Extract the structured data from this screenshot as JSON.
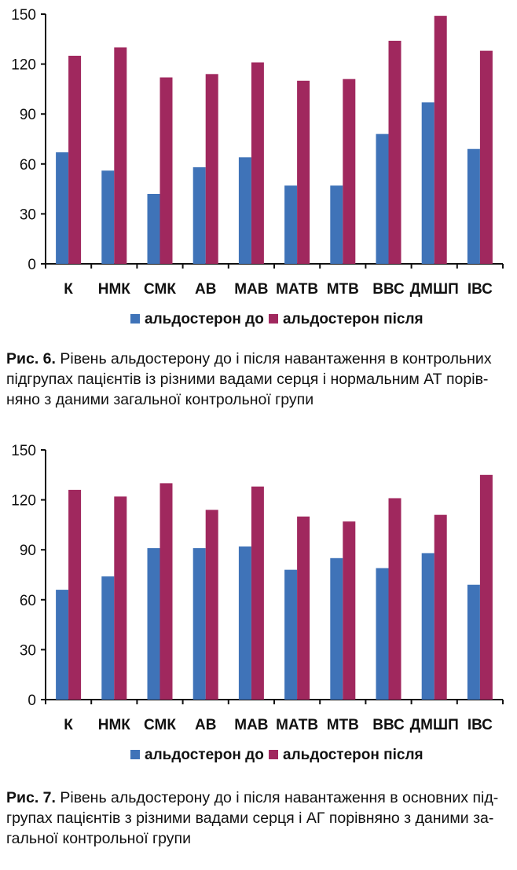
{
  "colors": {
    "before": "#3F73B8",
    "after": "#A0285E"
  },
  "chart_data": [
    {
      "type": "bar",
      "categories": [
        "К",
        "НМК",
        "СМК",
        "АВ",
        "МАВ",
        "МАТВ",
        "МТВ",
        "ВВС",
        "ДМШП",
        "ІВС"
      ],
      "series": [
        {
          "name": "альдостерон до",
          "values": [
            67,
            56,
            42,
            58,
            64,
            47,
            47,
            78,
            97,
            69
          ]
        },
        {
          "name": "альдостерон після",
          "values": [
            125,
            130,
            112,
            114,
            121,
            110,
            111,
            134,
            149,
            128
          ]
        }
      ],
      "yticks": [
        "0",
        "30",
        "60",
        "90",
        "120",
        "150"
      ],
      "ylim": [
        0,
        150
      ],
      "legend": "bottom",
      "grid": false
    },
    {
      "type": "bar",
      "categories": [
        "К",
        "НМК",
        "СМК",
        "АВ",
        "МАВ",
        "МАТВ",
        "МТВ",
        "ВВС",
        "ДМШП",
        "ІВС"
      ],
      "series": [
        {
          "name": "альдостерон до",
          "values": [
            66,
            74,
            91,
            91,
            92,
            78,
            85,
            79,
            88,
            69
          ]
        },
        {
          "name": "альдостерон після",
          "values": [
            126,
            122,
            130,
            114,
            128,
            110,
            107,
            121,
            111,
            135
          ]
        }
      ],
      "yticks": [
        "0",
        "30",
        "60",
        "90",
        "120",
        "150"
      ],
      "ylim": [
        0,
        150
      ],
      "legend": "bottom",
      "grid": false
    }
  ],
  "captions": [
    {
      "label": "Рис. 6.",
      "lines": [
        " Рівень альдостерону до і після навантаження в контрольних",
        "підгрупах пацієнтів із різними вадами серця і нормальним АТ порів-",
        "няно з даними  загальної контрольної групи"
      ]
    },
    {
      "label": "Рис. 7.",
      "lines": [
        " Рівень альдостерону до і після навантаження в основних під-",
        "групах пацієнтів з різними вадами серця і АГ порівняно з даними за-",
        "гальної контрольної групи"
      ]
    }
  ]
}
